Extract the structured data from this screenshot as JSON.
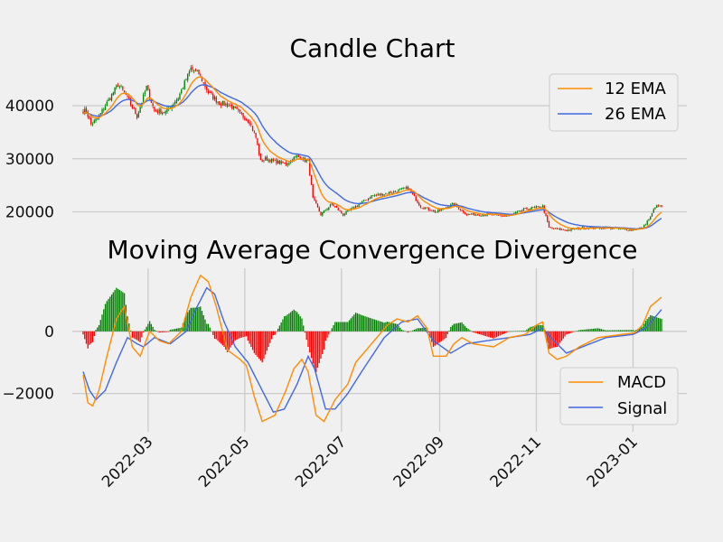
{
  "chart_data": [
    {
      "type": "candlestick",
      "title": "Candle Chart",
      "ylim": [
        16000,
        48000
      ],
      "yticks": [
        20000,
        30000,
        40000
      ],
      "ytick_labels": [
        "20000",
        "30000",
        "40000"
      ],
      "colors": {
        "up": "#008000",
        "down": "#ff0000",
        "ema12": "#ff8c00",
        "ema26": "#4169e1"
      },
      "legend": [
        "12 EMA",
        "26 EMA"
      ],
      "legend_position": "top-right",
      "close_anchors": [
        [
          "2022-01-21",
          39000
        ],
        [
          "2022-01-24",
          36500
        ],
        [
          "2022-01-28",
          37500
        ],
        [
          "2022-02-05",
          41500
        ],
        [
          "2022-02-10",
          44000
        ],
        [
          "2022-02-15",
          42000
        ],
        [
          "2022-02-22",
          38000
        ],
        [
          "2022-02-28",
          43500
        ],
        [
          "2022-03-05",
          39000
        ],
        [
          "2022-03-12",
          38800
        ],
        [
          "2022-03-20",
          41500
        ],
        [
          "2022-03-28",
          47000
        ],
        [
          "2022-04-02",
          46000
        ],
        [
          "2022-04-08",
          42500
        ],
        [
          "2022-04-15",
          40500
        ],
        [
          "2022-04-22",
          40000
        ],
        [
          "2022-04-28",
          38500
        ],
        [
          "2022-05-04",
          37000
        ],
        [
          "2022-05-08",
          34000
        ],
        [
          "2022-05-11",
          29500
        ],
        [
          "2022-05-14",
          30000
        ],
        [
          "2022-05-20",
          29500
        ],
        [
          "2022-05-27",
          29000
        ],
        [
          "2022-06-03",
          30500
        ],
        [
          "2022-06-10",
          29500
        ],
        [
          "2022-06-13",
          22500
        ],
        [
          "2022-06-18",
          19500
        ],
        [
          "2022-06-25",
          21500
        ],
        [
          "2022-07-02",
          19500
        ],
        [
          "2022-07-10",
          21000
        ],
        [
          "2022-07-20",
          23000
        ],
        [
          "2022-07-30",
          23500
        ],
        [
          "2022-08-12",
          24500
        ],
        [
          "2022-08-20",
          21000
        ],
        [
          "2022-08-30",
          20000
        ],
        [
          "2022-09-10",
          21500
        ],
        [
          "2022-09-18",
          19500
        ],
        [
          "2022-09-30",
          19500
        ],
        [
          "2022-10-15",
          19200
        ],
        [
          "2022-10-25",
          20500
        ],
        [
          "2022-11-05",
          21000
        ],
        [
          "2022-11-09",
          17000
        ],
        [
          "2022-11-20",
          16500
        ],
        [
          "2022-12-01",
          17000
        ],
        [
          "2022-12-15",
          17000
        ],
        [
          "2022-12-31",
          16600
        ],
        [
          "2023-01-07",
          17000
        ],
        [
          "2023-01-12",
          19000
        ],
        [
          "2023-01-15",
          21000
        ],
        [
          "2023-01-18",
          21000
        ]
      ]
    },
    {
      "type": "macd",
      "title": "Moving Average Convergence Divergence",
      "ylim": [
        -3000,
        2000
      ],
      "yticks": [
        -2000,
        0
      ],
      "ytick_labels": [
        "−2000",
        "0"
      ],
      "x_range": [
        "2022-01-19",
        "2023-01-19"
      ],
      "xticks": [
        "2022-03-01",
        "2022-05-01",
        "2022-07-01",
        "2022-09-01",
        "2022-11-01",
        "2023-01-01"
      ],
      "xtick_labels": [
        "2022-03",
        "2022-05",
        "2022-07",
        "2022-09",
        "2022-11",
        "2023-01"
      ],
      "colors": {
        "macd": "#ff8c00",
        "signal": "#4169e1",
        "hist_up": "#008000",
        "hist_down": "#ff0000"
      },
      "legend": [
        "MACD",
        "Signal"
      ],
      "legend_position": "lower-right",
      "macd_anchors": [
        [
          "2022-01-19",
          -1400
        ],
        [
          "2022-01-22",
          -2300
        ],
        [
          "2022-01-25",
          -2400
        ],
        [
          "2022-01-29",
          -1900
        ],
        [
          "2022-02-03",
          -800
        ],
        [
          "2022-02-09",
          400
        ],
        [
          "2022-02-14",
          800
        ],
        [
          "2022-02-19",
          -500
        ],
        [
          "2022-02-24",
          -800
        ],
        [
          "2022-03-02",
          0
        ],
        [
          "2022-03-08",
          -300
        ],
        [
          "2022-03-14",
          -400
        ],
        [
          "2022-03-22",
          0
        ],
        [
          "2022-03-28",
          1100
        ],
        [
          "2022-04-03",
          1800
        ],
        [
          "2022-04-08",
          1600
        ],
        [
          "2022-04-13",
          800
        ],
        [
          "2022-04-20",
          -600
        ],
        [
          "2022-04-28",
          -900
        ],
        [
          "2022-05-02",
          -1100
        ],
        [
          "2022-05-07",
          -2100
        ],
        [
          "2022-05-12",
          -2900
        ],
        [
          "2022-05-20",
          -2700
        ],
        [
          "2022-05-27",
          -1900
        ],
        [
          "2022-06-01",
          -1200
        ],
        [
          "2022-06-06",
          -900
        ],
        [
          "2022-06-10",
          -1300
        ],
        [
          "2022-06-15",
          -2700
        ],
        [
          "2022-06-20",
          -2900
        ],
        [
          "2022-06-27",
          -2200
        ],
        [
          "2022-07-05",
          -1700
        ],
        [
          "2022-07-10",
          -1000
        ],
        [
          "2022-07-20",
          -400
        ],
        [
          "2022-07-30",
          200
        ],
        [
          "2022-08-05",
          400
        ],
        [
          "2022-08-12",
          300
        ],
        [
          "2022-08-18",
          500
        ],
        [
          "2022-08-24",
          100
        ],
        [
          "2022-08-28",
          -800
        ],
        [
          "2022-09-05",
          -800
        ],
        [
          "2022-09-10",
          -400
        ],
        [
          "2022-09-15",
          -200
        ],
        [
          "2022-09-22",
          -400
        ],
        [
          "2022-10-05",
          -500
        ],
        [
          "2022-10-15",
          -200
        ],
        [
          "2022-10-25",
          -100
        ],
        [
          "2022-11-01",
          200
        ],
        [
          "2022-11-05",
          300
        ],
        [
          "2022-11-09",
          -700
        ],
        [
          "2022-11-14",
          -900
        ],
        [
          "2022-11-20",
          -800
        ],
        [
          "2022-11-28",
          -500
        ],
        [
          "2022-12-10",
          -200
        ],
        [
          "2022-12-25",
          -100
        ],
        [
          "2023-01-02",
          -50
        ],
        [
          "2023-01-07",
          200
        ],
        [
          "2023-01-12",
          800
        ],
        [
          "2023-01-19",
          1100
        ]
      ],
      "signal_anchors": [
        [
          "2022-01-19",
          -1300
        ],
        [
          "2022-01-23",
          -1900
        ],
        [
          "2022-01-27",
          -2200
        ],
        [
          "2022-02-02",
          -1900
        ],
        [
          "2022-02-09",
          -1000
        ],
        [
          "2022-02-16",
          -200
        ],
        [
          "2022-02-22",
          -400
        ],
        [
          "2022-02-26",
          -500
        ],
        [
          "2022-03-05",
          -200
        ],
        [
          "2022-03-15",
          -400
        ],
        [
          "2022-03-25",
          0
        ],
        [
          "2022-04-01",
          800
        ],
        [
          "2022-04-07",
          1400
        ],
        [
          "2022-04-12",
          1200
        ],
        [
          "2022-04-18",
          300
        ],
        [
          "2022-04-25",
          -500
        ],
        [
          "2022-05-03",
          -1000
        ],
        [
          "2022-05-10",
          -1700
        ],
        [
          "2022-05-19",
          -2600
        ],
        [
          "2022-05-26",
          -2500
        ],
        [
          "2022-06-03",
          -1700
        ],
        [
          "2022-06-10",
          -800
        ],
        [
          "2022-06-14",
          -1200
        ],
        [
          "2022-06-21",
          -2500
        ],
        [
          "2022-06-27",
          -2500
        ],
        [
          "2022-07-05",
          -2000
        ],
        [
          "2022-07-15",
          -1200
        ],
        [
          "2022-07-28",
          -200
        ],
        [
          "2022-08-08",
          300
        ],
        [
          "2022-08-18",
          400
        ],
        [
          "2022-08-28",
          -300
        ],
        [
          "2022-09-08",
          -700
        ],
        [
          "2022-09-18",
          -400
        ],
        [
          "2022-10-01",
          -300
        ],
        [
          "2022-10-15",
          -200
        ],
        [
          "2022-10-28",
          -100
        ],
        [
          "2022-11-05",
          100
        ],
        [
          "2022-11-12",
          -300
        ],
        [
          "2022-11-20",
          -700
        ],
        [
          "2022-11-30",
          -500
        ],
        [
          "2022-12-15",
          -200
        ],
        [
          "2023-01-01",
          -100
        ],
        [
          "2023-01-09",
          100
        ],
        [
          "2023-01-19",
          700
        ]
      ]
    }
  ]
}
